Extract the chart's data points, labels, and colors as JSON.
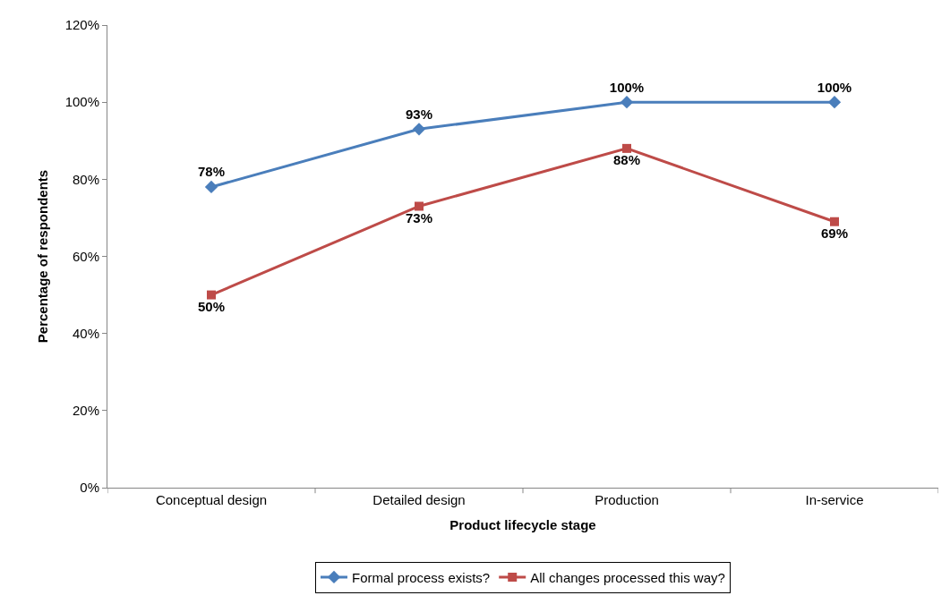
{
  "chart_data": {
    "type": "line",
    "xlabel": "Product lifecycle stage",
    "ylabel": "Percentage of respondents",
    "categories": [
      "Conceptual design",
      "Detailed design",
      "Production",
      "In-service"
    ],
    "series": [
      {
        "name": "Formal process exists?",
        "color": "#4a7ebb",
        "marker": "diamond",
        "values": [
          78,
          93,
          100,
          100
        ],
        "value_labels": [
          "78%",
          "93%",
          "100%",
          "100%"
        ]
      },
      {
        "name": "All changes processed this way?",
        "color": "#be4b48",
        "marker": "square",
        "values": [
          50,
          73,
          88,
          69
        ],
        "value_labels": [
          "50%",
          "73%",
          "88%",
          "69%"
        ]
      }
    ],
    "ylim": [
      0,
      120
    ],
    "yticks": [
      {
        "value": 0,
        "label": "0%"
      },
      {
        "value": 20,
        "label": "20%"
      },
      {
        "value": 40,
        "label": "40%"
      },
      {
        "value": 60,
        "label": "60%"
      },
      {
        "value": 80,
        "label": "80%"
      },
      {
        "value": 100,
        "label": "100%"
      },
      {
        "value": 120,
        "label": "120%"
      }
    ],
    "legend": "bottom",
    "line_style": "solid"
  }
}
